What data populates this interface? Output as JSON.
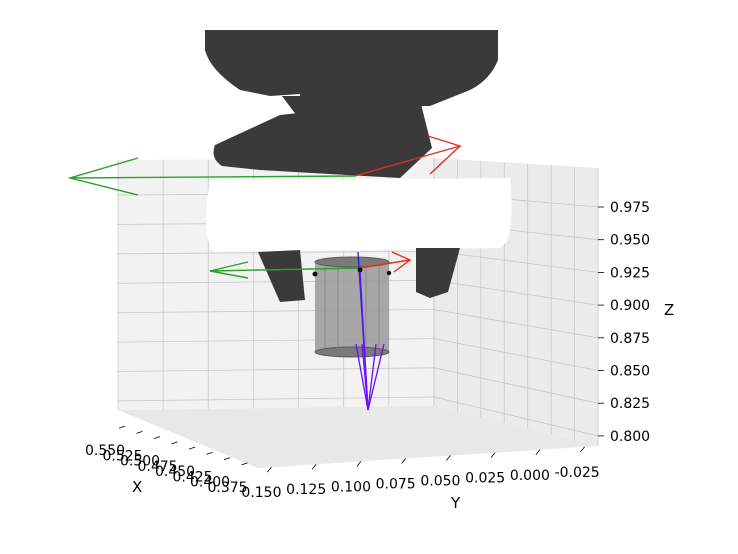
{
  "chart_data": {
    "type": "3d-scene",
    "title": "",
    "axes": {
      "x": {
        "label": "X",
        "ticks": [
          "0.550",
          "0.525",
          "0.500",
          "0.475",
          "0.450",
          "0.425",
          "0.400",
          "0.375"
        ]
      },
      "y": {
        "label": "Y",
        "ticks": [
          "0.150",
          "0.125",
          "0.100",
          "0.075",
          "0.050",
          "0.025",
          "0.000",
          "-0.025"
        ]
      },
      "z": {
        "label": "Z",
        "ticks": [
          "0.975",
          "0.950",
          "0.925",
          "0.900",
          "0.875",
          "0.850",
          "0.825",
          "0.800"
        ],
        "range": [
          0.79,
          0.995
        ]
      }
    },
    "grid": true,
    "colors": {
      "gripper": "#3a3a3a",
      "frame_x": "#e0301e",
      "frame_y": "#2ca02c",
      "frame_z": "#1f1fd0",
      "approach": "#6a0dff",
      "cylinder": "#9a9a9a",
      "pane": "#f2f2f2",
      "grid": "#c8c8c8"
    },
    "objects": [
      "gripper",
      "cylinder-object",
      "grasp-frame-upper",
      "grasp-frame-lower",
      "approach-vectors",
      "contact-points"
    ]
  }
}
